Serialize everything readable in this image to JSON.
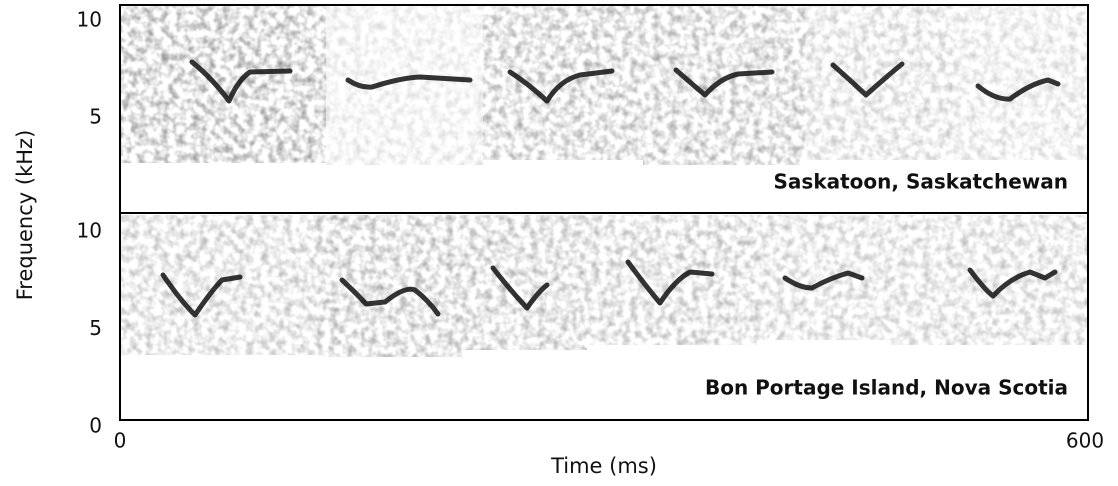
{
  "y_axis": {
    "label": "Frequency (kHz)"
  },
  "x_axis": {
    "label": "Time (ms)",
    "ticks": [
      0,
      600
    ]
  },
  "panels": [
    {
      "label": "Saskatoon, Saskatchewan",
      "yticks": [
        5,
        10
      ]
    },
    {
      "label": "Bon Portage Island, Nova Scotia",
      "yticks": [
        0,
        5,
        10
      ]
    }
  ]
}
